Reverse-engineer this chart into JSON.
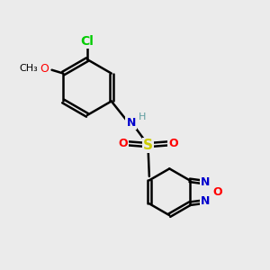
{
  "background_color": "#ebebeb",
  "bond_color": "#000000",
  "bond_width": 1.8,
  "colors": {
    "N": "#0000cd",
    "O": "#ff0000",
    "S": "#cccc00",
    "Cl": "#00cc00",
    "H": "#5f9ea0",
    "C": "#000000"
  },
  "figsize": [
    3.0,
    3.0
  ],
  "dpi": 100,
  "xlim": [
    0,
    10
  ],
  "ylim": [
    0,
    10
  ]
}
